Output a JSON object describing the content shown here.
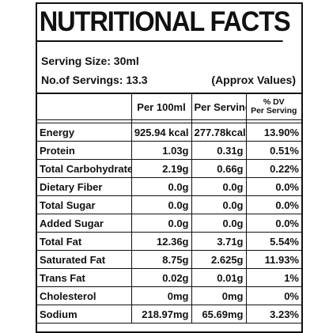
{
  "title": "NUTRITIONAL FACTS",
  "serving": {
    "size_text": "Serving Size: 30ml",
    "count_text": "No.of Servings:  13.3",
    "approx_text": "(Approx Values)"
  },
  "table": {
    "headers": {
      "per100": "Per 100ml",
      "perServing": "Per Serving",
      "dv_line1": "% DV",
      "dv_line2": "Per Serving"
    },
    "rows": [
      {
        "name": "Energy",
        "per100": "925.94 kcal",
        "perServing": "277.78kcal",
        "dv": "13.90%"
      },
      {
        "name": "Protein",
        "per100": "1.03g",
        "perServing": "0.31g",
        "dv": "0.51%"
      },
      {
        "name": "Total Carbohydrates",
        "per100": "2.19g",
        "perServing": "0.66g",
        "dv": "0.22%"
      },
      {
        "name": "Dietary Fiber",
        "per100": "0.0g",
        "perServing": "0.0g",
        "dv": "0.0%"
      },
      {
        "name": "Total Sugar",
        "per100": "0.0g",
        "perServing": "0.0g",
        "dv": "0.0%"
      },
      {
        "name": "Added Sugar",
        "per100": "0.0g",
        "perServing": "0.0g",
        "dv": "0.0%"
      },
      {
        "name": "Total Fat",
        "per100": "12.36g",
        "perServing": "3.71g",
        "dv": "5.54%"
      },
      {
        "name": "Saturated Fat",
        "per100": "8.75g",
        "perServing": "2.625g",
        "dv": "11.93%"
      },
      {
        "name": "Trans Fat",
        "per100": "0.02g",
        "perServing": "0.01g",
        "dv": "1%"
      },
      {
        "name": "Cholesterol",
        "per100": "0mg",
        "perServing": "0mg",
        "dv": "0%"
      },
      {
        "name": "Sodium",
        "per100": "218.97mg",
        "perServing": "65.69mg",
        "dv": "3.23%"
      }
    ]
  }
}
